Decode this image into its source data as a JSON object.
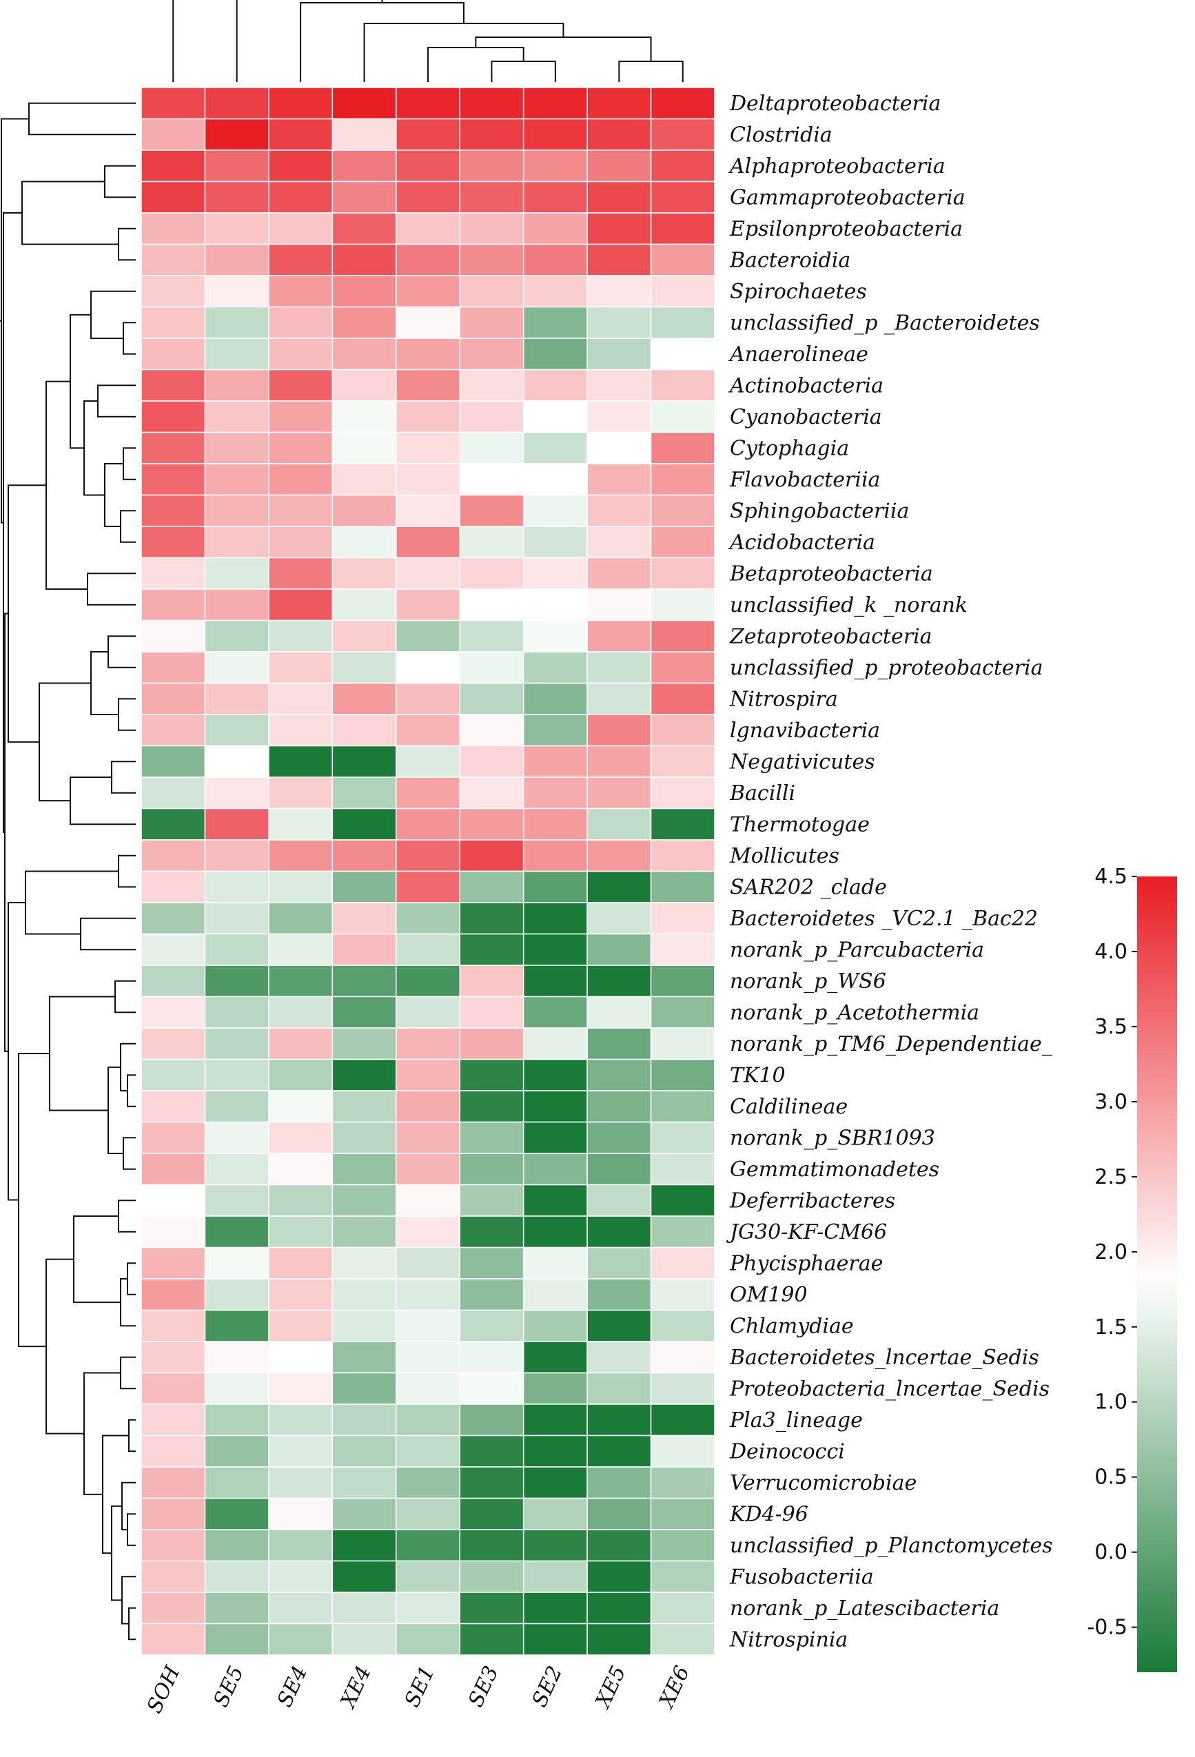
{
  "chart_data": {
    "type": "heatmap",
    "title": "",
    "columns": [
      "SOH",
      "SE5",
      "SE4",
      "XE4",
      "SE1",
      "SE3",
      "SE2",
      "XE5",
      "XE6"
    ],
    "rows": [
      "Deltaproteobacteria",
      "Clostridia",
      "Alphaproteobacteria",
      "Gammaproteobacteria",
      "Epsilonproteobacteria",
      "Bacteroidia",
      "Spirochaetes",
      "unclassified_p _Bacteroidetes",
      "Anaerolineae",
      "Actinobacteria",
      "Cyanobacteria",
      "Cytophagia",
      "Flavobacteriia",
      "Sphingobacteriia",
      "Acidobacteria",
      "Betaproteobacteria",
      "unclassified_k _norank",
      "Zetaproteobacteria",
      "unclassified_p_proteobacteria",
      "Nitrospira",
      "lgnavibacteria",
      "Negativicutes",
      "Bacilli",
      "Thermotogae",
      "Mollicutes",
      "SAR202 _clade",
      "Bacteroidetes _VC2.1 _Bac22",
      "norank_p_Parcubacteria",
      "norank_p_WS6",
      "norank_p_Acetothermia",
      "norank_p_TM6_Dependentiae_",
      "TK10",
      "Caldilineae",
      "norank_p_SBR1093",
      "Gemmatimonadetes",
      "Deferribacteres",
      "JG30-KF-CM66",
      "Phycisphaerae",
      "OM190",
      "Chlamydiae",
      "Bacteroidetes_lncertae_Sedis",
      "Proteobacteria_lncertae_Sedis",
      "Pla3_lineage",
      "Deinococci",
      "Verrucomicrobiae",
      "KD4-96",
      "unclassified_p_Planctomycetes",
      "Fusobacteriia",
      "norank_p_Latescibacteria",
      "Nitrospinia"
    ],
    "values": [
      [
        4.0,
        4.1,
        4.3,
        4.5,
        4.4,
        4.4,
        4.4,
        4.3,
        4.4
      ],
      [
        2.8,
        4.5,
        4.1,
        2.2,
        4.0,
        4.1,
        4.2,
        4.1,
        3.8
      ],
      [
        4.1,
        3.6,
        4.1,
        3.4,
        3.8,
        3.3,
        3.2,
        3.4,
        3.9
      ],
      [
        4.1,
        3.8,
        3.9,
        3.3,
        3.8,
        3.7,
        3.8,
        4.0,
        3.9
      ],
      [
        2.7,
        2.5,
        2.5,
        3.7,
        2.5,
        2.6,
        2.9,
        4.0,
        4.0
      ],
      [
        2.6,
        2.8,
        3.8,
        3.9,
        3.4,
        3.2,
        3.4,
        3.9,
        3.0
      ],
      [
        2.4,
        2.0,
        3.0,
        3.2,
        3.0,
        2.5,
        2.4,
        2.1,
        2.2
      ],
      [
        2.5,
        1.1,
        2.6,
        3.1,
        1.9,
        2.8,
        0.4,
        1.2,
        1.1
      ],
      [
        2.6,
        1.2,
        2.6,
        2.8,
        2.9,
        2.8,
        0.2,
        1.0,
        1.8
      ],
      [
        3.7,
        2.8,
        3.7,
        2.3,
        3.2,
        2.2,
        2.5,
        2.2,
        2.5
      ],
      [
        3.8,
        2.5,
        2.9,
        1.7,
        2.5,
        2.3,
        1.8,
        2.1,
        1.6
      ],
      [
        3.6,
        2.7,
        2.9,
        1.7,
        2.2,
        1.6,
        1.2,
        1.8,
        3.3
      ],
      [
        3.6,
        2.8,
        3.0,
        2.2,
        2.2,
        1.8,
        1.8,
        2.7,
        3.0
      ],
      [
        3.6,
        2.7,
        2.7,
        2.8,
        2.1,
        3.2,
        1.6,
        2.5,
        2.8
      ],
      [
        3.6,
        2.5,
        2.6,
        1.6,
        3.3,
        1.5,
        1.3,
        2.2,
        2.9
      ],
      [
        2.2,
        1.4,
        3.4,
        2.4,
        2.2,
        2.3,
        2.1,
        2.7,
        2.5
      ],
      [
        2.8,
        2.8,
        3.8,
        1.5,
        2.6,
        1.8,
        1.8,
        1.9,
        1.6
      ],
      [
        1.9,
        1.0,
        1.3,
        2.4,
        0.8,
        1.2,
        1.7,
        2.9,
        3.4
      ],
      [
        2.8,
        1.6,
        2.4,
        1.3,
        1.8,
        1.6,
        0.9,
        1.2,
        3.1
      ],
      [
        2.8,
        2.5,
        2.2,
        3.0,
        2.6,
        1.0,
        0.4,
        1.3,
        3.5
      ],
      [
        2.6,
        1.1,
        2.2,
        2.3,
        2.7,
        1.9,
        0.5,
        3.3,
        2.6
      ],
      [
        0.4,
        1.8,
        -0.8,
        -0.8,
        1.4,
        2.3,
        2.9,
        2.9,
        2.4
      ],
      [
        1.3,
        2.1,
        2.4,
        0.9,
        2.9,
        2.1,
        2.8,
        2.8,
        2.2
      ],
      [
        -0.6,
        3.7,
        1.5,
        -0.8,
        3.1,
        3.0,
        3.0,
        1.1,
        -0.7
      ],
      [
        2.7,
        2.6,
        3.1,
        3.2,
        3.6,
        4.0,
        3.1,
        3.0,
        2.5
      ],
      [
        2.3,
        1.4,
        1.4,
        0.4,
        3.6,
        0.6,
        -0.1,
        -0.8,
        0.4
      ],
      [
        0.8,
        1.3,
        0.6,
        2.4,
        0.8,
        -0.6,
        -0.8,
        1.3,
        2.2
      ],
      [
        1.5,
        1.1,
        1.5,
        2.6,
        1.2,
        -0.6,
        -0.8,
        0.4,
        2.1
      ],
      [
        1.0,
        -0.2,
        -0.1,
        -0.1,
        -0.3,
        2.5,
        -0.8,
        -0.8,
        0.0
      ],
      [
        2.1,
        1.0,
        1.3,
        -0.1,
        1.3,
        2.3,
        0.1,
        1.5,
        0.5
      ],
      [
        2.4,
        1.0,
        2.6,
        0.8,
        2.7,
        2.8,
        1.5,
        0.1,
        1.5
      ],
      [
        1.2,
        1.2,
        0.9,
        -0.8,
        2.7,
        -0.6,
        -0.8,
        0.3,
        0.2
      ],
      [
        2.3,
        1.0,
        1.7,
        1.0,
        2.8,
        -0.6,
        -0.8,
        0.3,
        0.6
      ],
      [
        2.6,
        1.6,
        2.2,
        1.0,
        2.7,
        0.6,
        -0.8,
        0.2,
        1.2
      ],
      [
        2.8,
        1.4,
        1.9,
        0.6,
        2.7,
        0.4,
        0.4,
        0.1,
        1.3
      ],
      [
        1.8,
        1.2,
        1.0,
        0.7,
        1.9,
        0.8,
        -0.8,
        1.1,
        -0.8
      ],
      [
        1.9,
        -0.3,
        1.1,
        0.8,
        2.1,
        -0.6,
        -0.8,
        -0.8,
        0.8
      ],
      [
        2.7,
        1.7,
        2.5,
        1.5,
        1.3,
        0.5,
        1.6,
        0.9,
        2.2
      ],
      [
        3.0,
        1.3,
        2.4,
        1.4,
        1.4,
        0.5,
        1.5,
        0.4,
        1.5
      ],
      [
        2.4,
        -0.3,
        2.4,
        1.4,
        1.6,
        1.1,
        0.8,
        -0.8,
        1.1
      ],
      [
        2.4,
        1.9,
        1.8,
        0.6,
        1.6,
        1.6,
        -0.8,
        1.3,
        1.9
      ],
      [
        2.6,
        1.6,
        2.0,
        0.4,
        1.6,
        1.7,
        0.3,
        0.9,
        1.3
      ],
      [
        2.3,
        0.9,
        1.2,
        1.0,
        0.9,
        0.3,
        -0.8,
        -0.8,
        -0.8
      ],
      [
        2.3,
        0.6,
        1.4,
        0.9,
        1.1,
        -0.6,
        -0.8,
        -0.8,
        1.5
      ],
      [
        2.7,
        0.9,
        1.3,
        1.1,
        0.6,
        -0.6,
        -0.8,
        0.4,
        0.8
      ],
      [
        2.7,
        -0.3,
        1.9,
        0.7,
        1.0,
        -0.6,
        0.9,
        0.2,
        0.6
      ],
      [
        2.6,
        0.6,
        0.9,
        -0.8,
        -0.3,
        -0.6,
        -0.6,
        -0.6,
        0.6
      ],
      [
        2.5,
        1.3,
        1.4,
        -0.8,
        1.0,
        0.8,
        1.0,
        -0.8,
        0.9
      ],
      [
        2.6,
        0.7,
        1.3,
        1.3,
        1.4,
        -0.6,
        -0.8,
        -0.8,
        1.2
      ],
      [
        2.5,
        0.6,
        0.9,
        1.3,
        0.9,
        -0.6,
        -0.8,
        -0.8,
        1.2
      ]
    ],
    "color_range": [
      -0.8,
      4.5
    ],
    "colors": {
      "low": "#1a7a38",
      "mid": "#ffffff",
      "high": "#e81e25",
      "mid_value": 1.8
    },
    "colorbar_ticks": [
      "4.5",
      "4.0",
      "3.5",
      "3.0",
      "2.5",
      "2.0",
      "1.5",
      "1.0",
      "0.5",
      "0.0",
      "-0.5"
    ],
    "colorbar_tick_values": [
      4.5,
      4.0,
      3.5,
      3.0,
      2.5,
      2.0,
      1.5,
      1.0,
      0.5,
      0.0,
      -0.5
    ],
    "xlabel": "",
    "ylabel": ""
  }
}
